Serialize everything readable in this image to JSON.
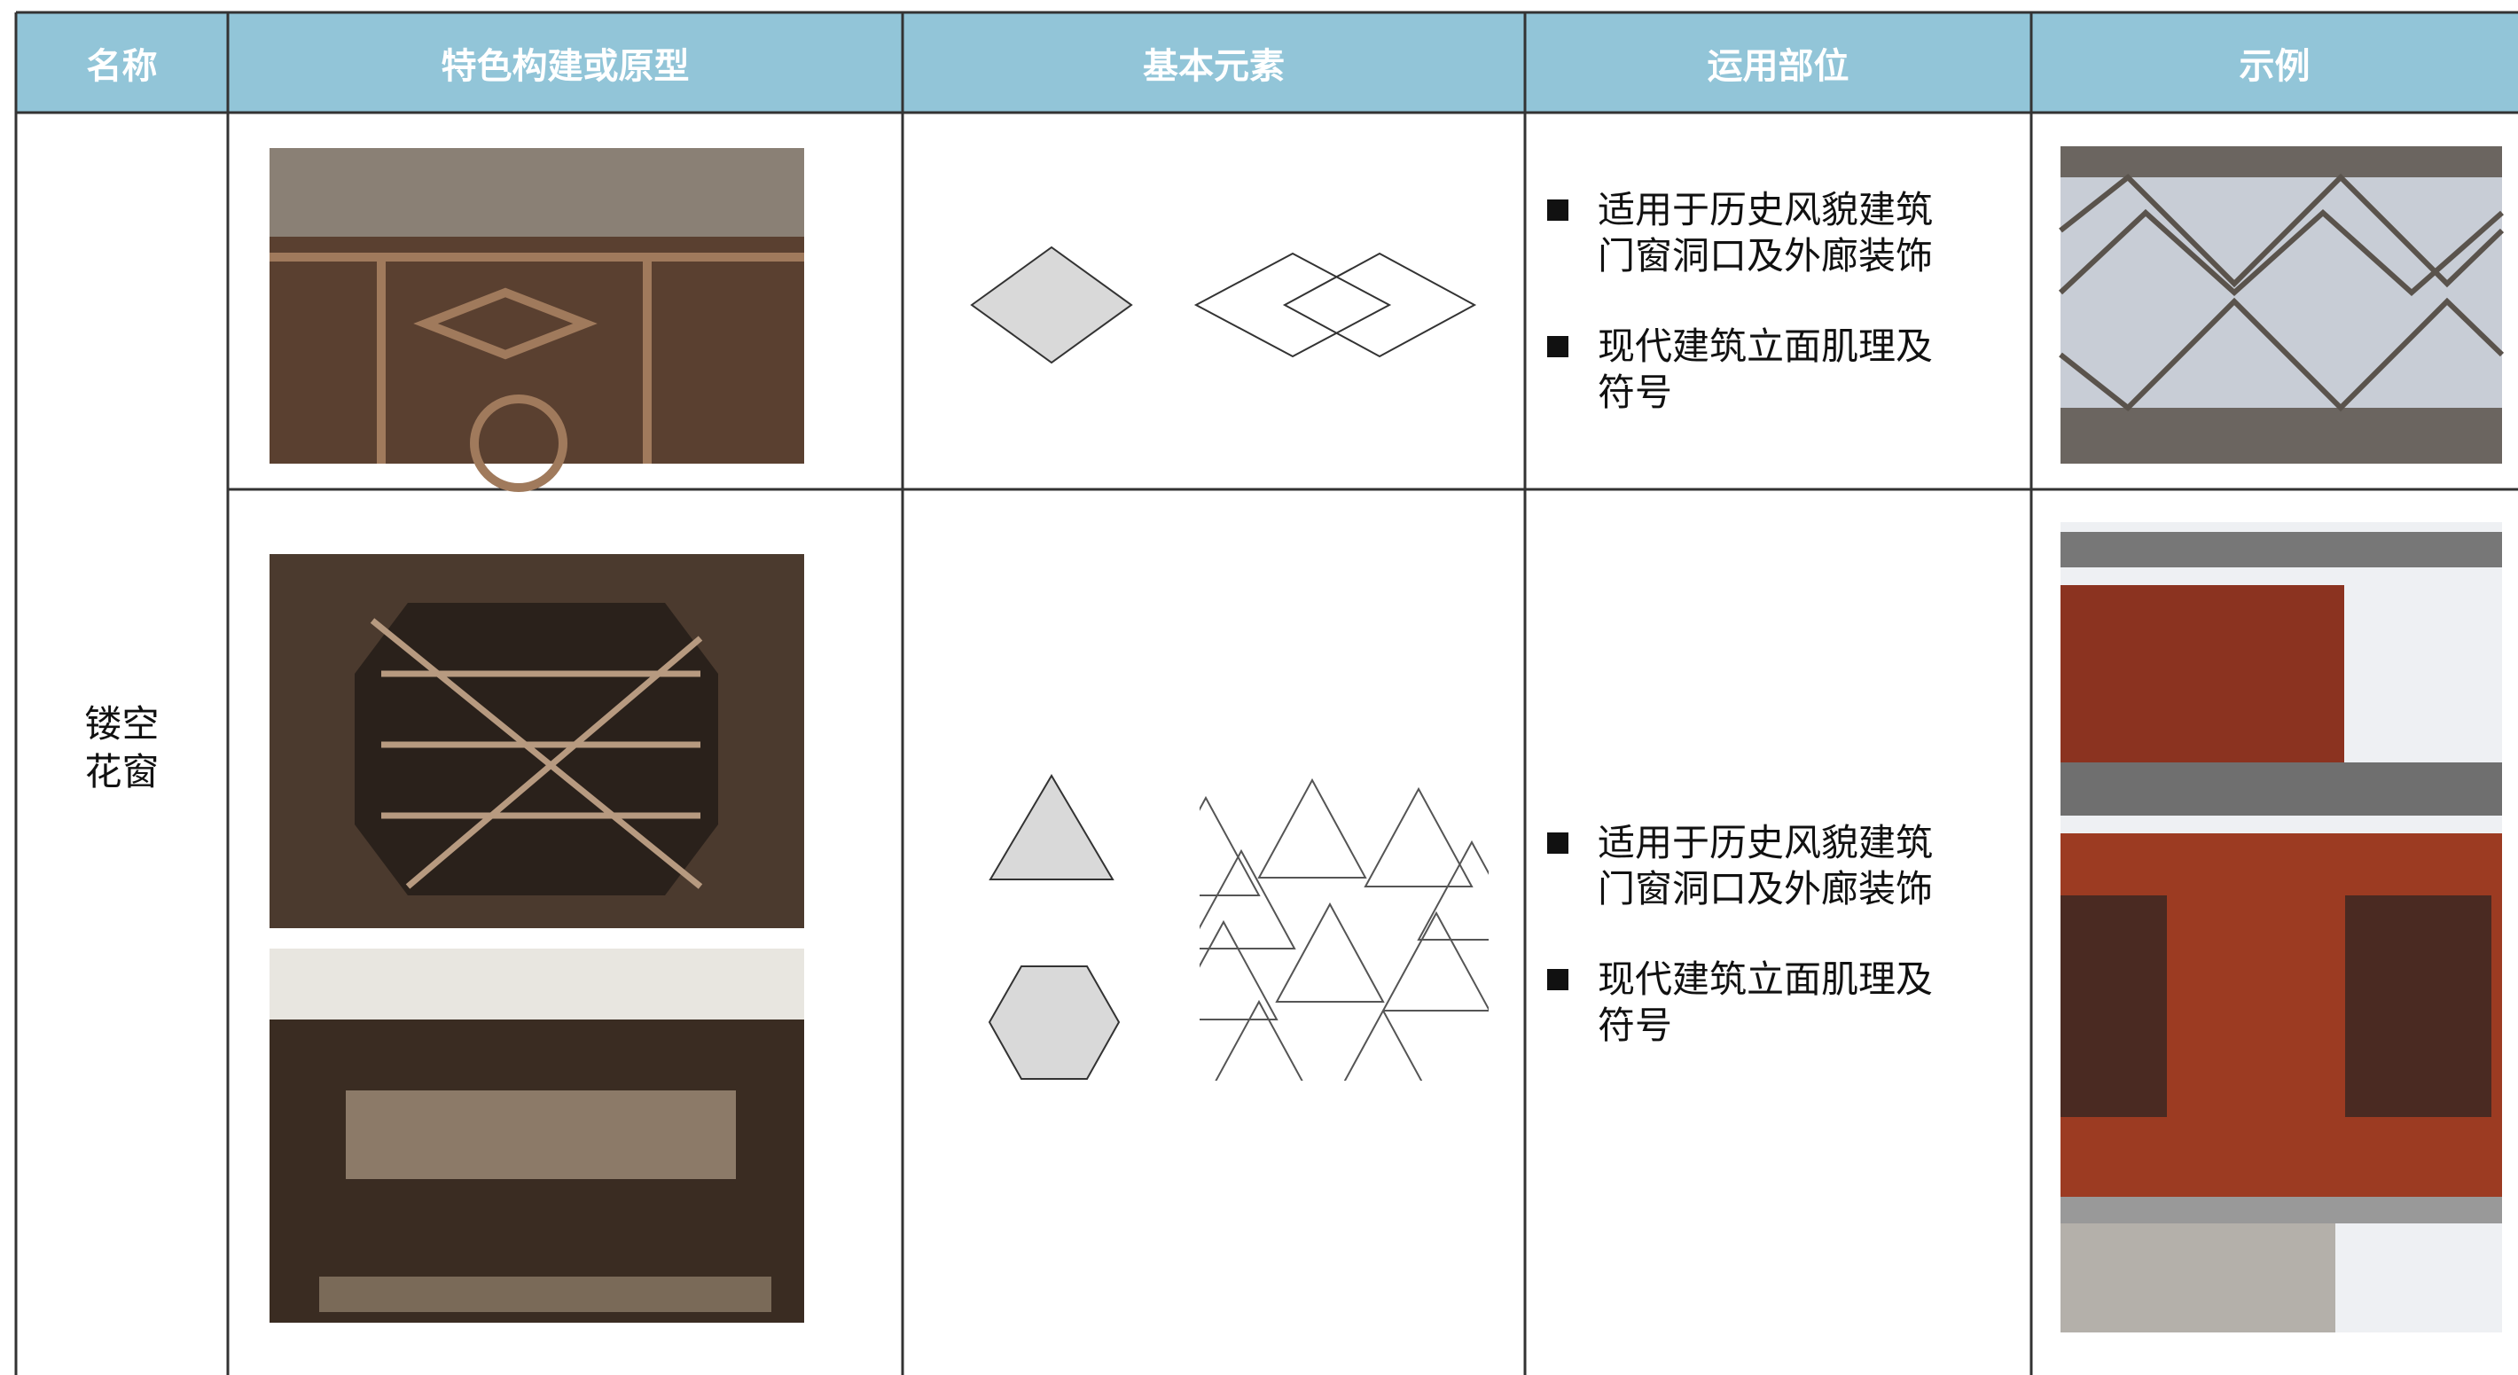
{
  "header": {
    "columns": [
      "名称",
      "特色构建或原型",
      "基本元素",
      "运用部位",
      "示例"
    ]
  },
  "table": {
    "name": "镂空花窗",
    "rows": [
      {
        "usage": [
          "适用于历史风貌建筑门窗洞口及外廊装饰",
          "现代建筑立面肌理及符号"
        ]
      },
      {
        "usage": [
          "适用于历史风貌建筑门窗洞口及外廊装饰",
          "现代建筑立面肌理及符号"
        ]
      }
    ]
  }
}
